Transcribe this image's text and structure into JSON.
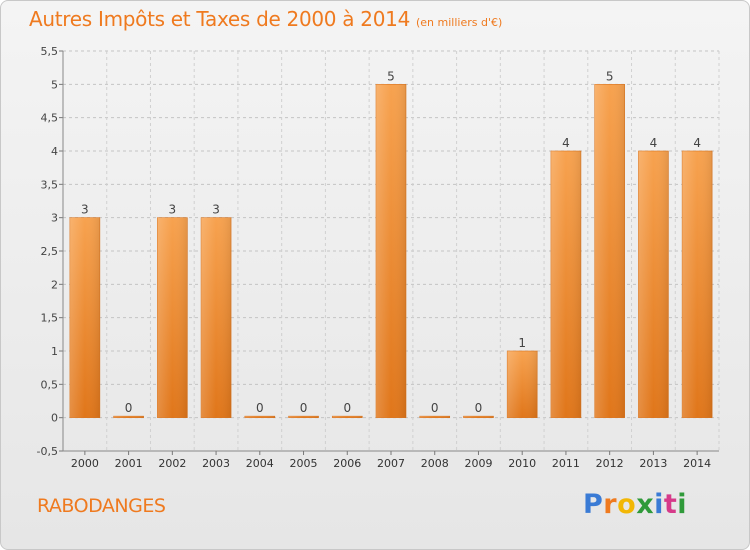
{
  "chart_data": {
    "type": "bar",
    "title": "Autres Impôts et Taxes de 2000 à 2014",
    "unit_note": "(en milliers d'€)",
    "categories": [
      "2000",
      "2001",
      "2002",
      "2003",
      "2004",
      "2005",
      "2006",
      "2007",
      "2008",
      "2009",
      "2010",
      "2011",
      "2012",
      "2013",
      "2014"
    ],
    "values": [
      3,
      0,
      3,
      3,
      0,
      0,
      0,
      5,
      0,
      0,
      1,
      4,
      5,
      4,
      4
    ],
    "data_labels": [
      "3",
      "0",
      "3",
      "3",
      "0",
      "0",
      "0",
      "5",
      "0",
      "0",
      "1",
      "4",
      "5",
      "4",
      "4"
    ],
    "ylim": [
      -0.5,
      5.5
    ],
    "yticks": [
      -0.5,
      0,
      0.5,
      1,
      1.5,
      2,
      2.5,
      3,
      3.5,
      4,
      4.5,
      5,
      5.5
    ],
    "ytick_labels": [
      "-0,5",
      "0",
      "0,5",
      "1",
      "1,5",
      "2",
      "2,5",
      "3",
      "3,5",
      "4",
      "4,5",
      "5",
      "5,5"
    ],
    "grid": "horizontal dashed",
    "bar_color": "#ef8b2c",
    "xlabel": "",
    "ylabel": ""
  },
  "commune": "RABODANGES",
  "brand": {
    "letters": [
      "P",
      "r",
      "o",
      "x",
      "i",
      "t",
      "i"
    ],
    "colors": [
      "#3a7bd5",
      "#ef7a1f",
      "#f2b705",
      "#2f9a3a",
      "#3a7bd5",
      "#d63a8a",
      "#2f9a3a"
    ]
  }
}
